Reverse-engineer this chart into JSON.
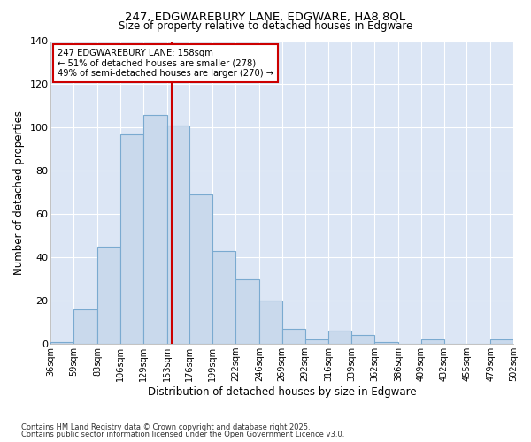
{
  "title1": "247, EDGWAREBURY LANE, EDGWARE, HA8 8QL",
  "title2": "Size of property relative to detached houses in Edgware",
  "xlabel": "Distribution of detached houses by size in Edgware",
  "ylabel": "Number of detached properties",
  "bar_color": "#c9d9ec",
  "bar_edge_color": "#7aaad0",
  "bg_color": "#ffffff",
  "plot_bg_color": "#dce6f5",
  "grid_color": "#ffffff",
  "bins": [
    36,
    59,
    83,
    106,
    129,
    153,
    176,
    199,
    222,
    246,
    269,
    292,
    316,
    339,
    362,
    386,
    409,
    432,
    455,
    479,
    502
  ],
  "values": [
    1,
    16,
    45,
    97,
    106,
    101,
    69,
    43,
    30,
    20,
    7,
    2,
    6,
    4,
    1,
    0,
    2,
    0,
    0,
    2
  ],
  "property_size": 158,
  "annotation_line1": "247 EDGWAREBURY LANE: 158sqm",
  "annotation_line2": "← 51% of detached houses are smaller (278)",
  "annotation_line3": "49% of semi-detached houses are larger (270) →",
  "annotation_box_color": "#ffffff",
  "annotation_border_color": "#cc0000",
  "vline_color": "#cc0000",
  "footer1": "Contains HM Land Registry data © Crown copyright and database right 2025.",
  "footer2": "Contains public sector information licensed under the Open Government Licence v3.0.",
  "ylim": [
    0,
    140
  ],
  "yticks": [
    0,
    20,
    40,
    60,
    80,
    100,
    120,
    140
  ]
}
